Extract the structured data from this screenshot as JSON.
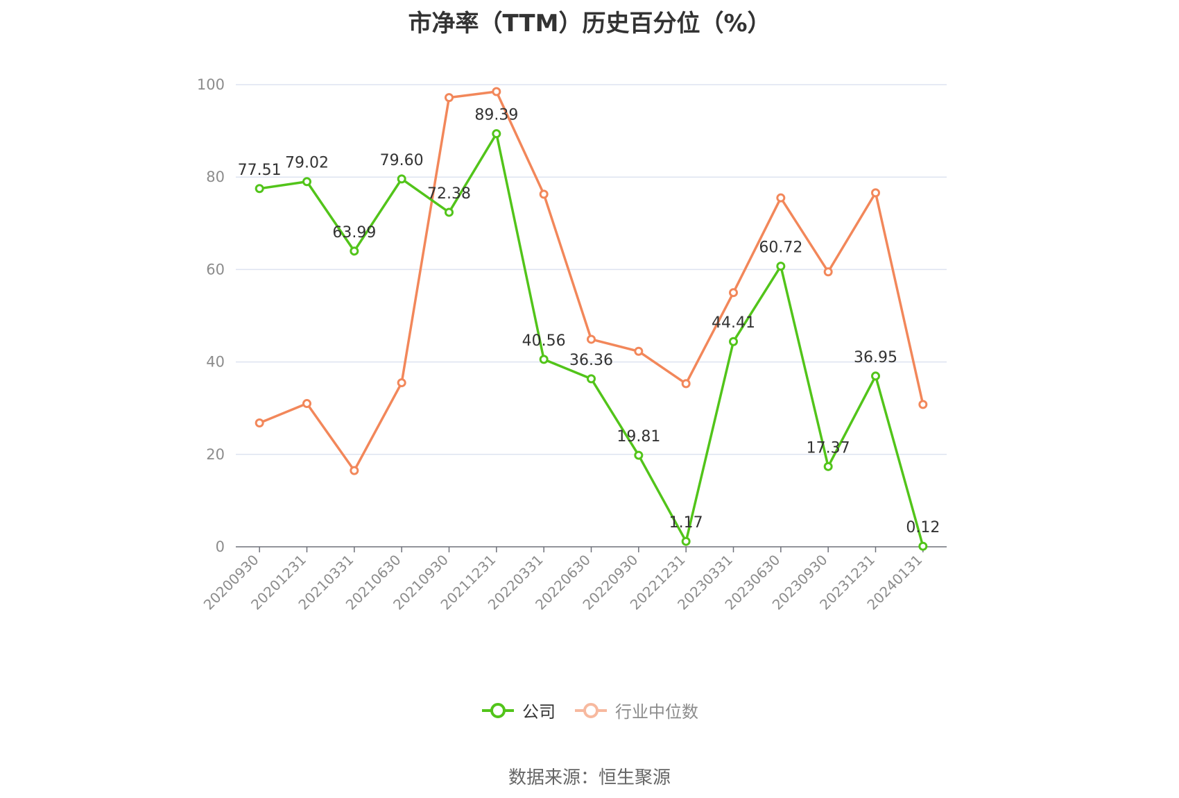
{
  "title": "市净率（TTM）历史百分位（%）",
  "source_text": "数据来源：恒生聚源",
  "colors": {
    "company": "#52c41a",
    "industry": "#f2875a",
    "grid": "#dde3f0",
    "axis": "#6e7079"
  },
  "chart_data": {
    "type": "line",
    "title": "市净率（TTM）历史百分位（%）",
    "categories": [
      "20200930",
      "20201231",
      "20210331",
      "20210630",
      "20210930",
      "20211231",
      "20220331",
      "20220630",
      "20220930",
      "20221231",
      "20230331",
      "20230630",
      "20230930",
      "20231231",
      "20240131"
    ],
    "ylim": [
      0,
      100
    ],
    "yticks": [
      0,
      20,
      40,
      60,
      80,
      100
    ],
    "grid": true,
    "legend_position": "bottom",
    "series": [
      {
        "name": "公司",
        "labels_shown": true,
        "values": [
          77.51,
          79.02,
          63.99,
          79.6,
          72.38,
          89.39,
          40.56,
          36.36,
          19.81,
          1.17,
          44.41,
          60.72,
          17.37,
          36.95,
          0.12
        ]
      },
      {
        "name": "行业中位数",
        "labels_shown": false,
        "values": [
          26.8,
          31.0,
          16.5,
          35.5,
          97.2,
          98.5,
          76.3,
          44.9,
          42.3,
          35.3,
          55.0,
          75.5,
          59.5,
          76.6,
          30.8
        ]
      }
    ]
  }
}
